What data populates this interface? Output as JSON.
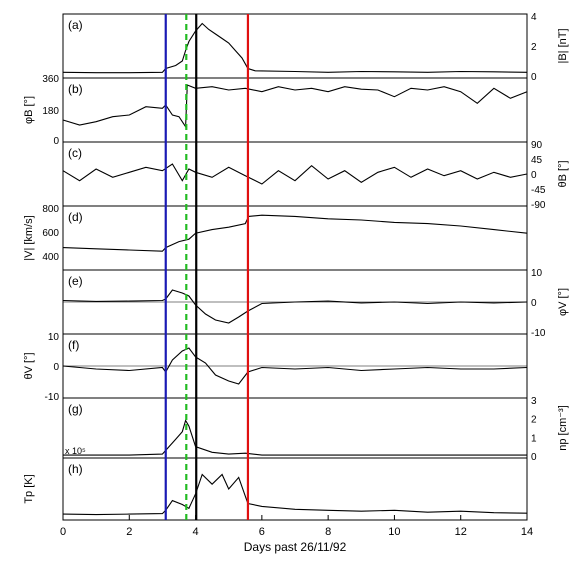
{
  "chart_data": {
    "type": "line",
    "xlabel": "Days past 26/11/92",
    "xlim": [
      0,
      14
    ],
    "x_ticks": [
      "0",
      "2",
      "4",
      "6",
      "8",
      "10",
      "12",
      "14"
    ],
    "markers": [
      {
        "x": 3.1,
        "color": "#1a1ab4",
        "style": "solid"
      },
      {
        "x": 3.72,
        "color": "#22bb22",
        "style": "dashed"
      },
      {
        "x": 4.02,
        "color": "#000000",
        "style": "solid"
      },
      {
        "x": 5.58,
        "color": "#e01010",
        "style": "solid"
      }
    ],
    "panels": [
      {
        "label": "(a)",
        "ylabel": "|B| [nT]",
        "ylabel_side": "right",
        "ylim": [
          0,
          4
        ],
        "ticks": [
          "0",
          "2",
          "4"
        ],
        "left_ticks": [
          "360"
        ],
        "zero_line": false,
        "series": [
          [
            0,
            0.25
          ],
          [
            1,
            0.22
          ],
          [
            2,
            0.22
          ],
          [
            3,
            0.25
          ],
          [
            3.1,
            0.5
          ],
          [
            3.4,
            0.7
          ],
          [
            3.6,
            1.0
          ],
          [
            3.7,
            1.7
          ],
          [
            3.8,
            2.3
          ],
          [
            4.0,
            3.0
          ],
          [
            4.2,
            3.5
          ],
          [
            4.4,
            3.1
          ],
          [
            4.6,
            2.8
          ],
          [
            4.8,
            2.5
          ],
          [
            5.0,
            2.2
          ],
          [
            5.2,
            1.7
          ],
          [
            5.4,
            1.2
          ],
          [
            5.58,
            0.5
          ],
          [
            5.8,
            0.35
          ],
          [
            7,
            0.3
          ],
          [
            8,
            0.25
          ],
          [
            9,
            0.3
          ],
          [
            10,
            0.28
          ],
          [
            11,
            0.25
          ],
          [
            12,
            0.3
          ],
          [
            13,
            0.28
          ],
          [
            14,
            0.25
          ]
        ]
      },
      {
        "label": "(b)",
        "ylabel": "φB [°]",
        "ylabel_side": "left",
        "ylim": [
          0,
          360
        ],
        "ticks": [
          "0",
          "180"
        ],
        "zero_line": false,
        "series": [
          [
            0,
            120
          ],
          [
            0.5,
            90
          ],
          [
            1,
            110
          ],
          [
            1.5,
            140
          ],
          [
            2,
            150
          ],
          [
            2.5,
            200
          ],
          [
            3,
            190
          ],
          [
            3.1,
            210
          ],
          [
            3.3,
            150
          ],
          [
            3.5,
            140
          ],
          [
            3.7,
            80
          ],
          [
            3.75,
            330
          ],
          [
            4,
            310
          ],
          [
            4.5,
            320
          ],
          [
            5,
            300
          ],
          [
            5.5,
            310
          ],
          [
            6,
            290
          ],
          [
            6.5,
            320
          ],
          [
            7,
            300
          ],
          [
            7.5,
            310
          ],
          [
            8,
            290
          ],
          [
            8.5,
            320
          ],
          [
            9,
            305
          ],
          [
            9.5,
            300
          ],
          [
            10,
            260
          ],
          [
            10.5,
            310
          ],
          [
            11,
            300
          ],
          [
            11.5,
            320
          ],
          [
            12,
            290
          ],
          [
            12.5,
            220
          ],
          [
            13,
            310
          ],
          [
            13.5,
            250
          ],
          [
            14,
            290
          ]
        ]
      },
      {
        "label": "(c)",
        "ylabel": "θB [°]",
        "ylabel_side": "right",
        "ylim": [
          -90,
          90
        ],
        "ticks": [
          "-90",
          "-45",
          "0",
          "45",
          "90"
        ],
        "zero_line": false,
        "series": [
          [
            0,
            10
          ],
          [
            0.5,
            -20
          ],
          [
            1,
            15
          ],
          [
            1.5,
            -10
          ],
          [
            2,
            5
          ],
          [
            2.5,
            20
          ],
          [
            3,
            10
          ],
          [
            3.3,
            30
          ],
          [
            3.6,
            -20
          ],
          [
            3.8,
            15
          ],
          [
            4,
            5
          ],
          [
            4.5,
            -10
          ],
          [
            5,
            20
          ],
          [
            5.5,
            -5
          ],
          [
            6,
            -30
          ],
          [
            6.5,
            10
          ],
          [
            7,
            -20
          ],
          [
            7.5,
            25
          ],
          [
            8,
            -15
          ],
          [
            8.5,
            10
          ],
          [
            9,
            -25
          ],
          [
            9.5,
            5
          ],
          [
            10,
            20
          ],
          [
            10.5,
            -10
          ],
          [
            11,
            15
          ],
          [
            11.5,
            -5
          ],
          [
            12,
            10
          ],
          [
            12.5,
            -15
          ],
          [
            13,
            5
          ],
          [
            13.5,
            -10
          ],
          [
            14,
            0
          ]
        ]
      },
      {
        "label": "(d)",
        "ylabel": "|V| [km/s]",
        "ylabel_side": "left",
        "ylim": [
          300,
          800
        ],
        "ticks": [
          "400",
          "600",
          "800"
        ],
        "zero_line": false,
        "series": [
          [
            0,
            470
          ],
          [
            1,
            460
          ],
          [
            2,
            450
          ],
          [
            3,
            440
          ],
          [
            3.1,
            470
          ],
          [
            3.5,
            520
          ],
          [
            3.8,
            540
          ],
          [
            4.0,
            590
          ],
          [
            4.5,
            620
          ],
          [
            5.0,
            640
          ],
          [
            5.5,
            670
          ],
          [
            5.6,
            730
          ],
          [
            6,
            740
          ],
          [
            7,
            730
          ],
          [
            8,
            710
          ],
          [
            9,
            700
          ],
          [
            10,
            680
          ],
          [
            11,
            670
          ],
          [
            12,
            650
          ],
          [
            13,
            620
          ],
          [
            14,
            590
          ]
        ]
      },
      {
        "label": "(e)",
        "ylabel": "φV [°]",
        "ylabel_side": "right",
        "ylim": [
          -10,
          10
        ],
        "ticks": [
          "-10",
          "0",
          "10"
        ],
        "zero_line": true,
        "series": [
          [
            0,
            0.5
          ],
          [
            1,
            0.2
          ],
          [
            2,
            0.3
          ],
          [
            3,
            0.5
          ],
          [
            3.1,
            1
          ],
          [
            3.3,
            4
          ],
          [
            3.6,
            3
          ],
          [
            3.8,
            2
          ],
          [
            4.0,
            -1
          ],
          [
            4.3,
            -4
          ],
          [
            4.6,
            -6
          ],
          [
            5.0,
            -7
          ],
          [
            5.3,
            -5
          ],
          [
            5.58,
            -3
          ],
          [
            6,
            -0.5
          ],
          [
            7,
            0
          ],
          [
            8,
            0.3
          ],
          [
            9,
            -0.3
          ],
          [
            10,
            0
          ],
          [
            11,
            -0.5
          ],
          [
            12,
            0
          ],
          [
            13,
            -0.3
          ],
          [
            14,
            0
          ]
        ]
      },
      {
        "label": "(f)",
        "ylabel": "θV [°]",
        "ylabel_side": "left",
        "ylim": [
          -10,
          10
        ],
        "ticks": [
          "-10",
          "0",
          "10"
        ],
        "zero_line": true,
        "series": [
          [
            0,
            0
          ],
          [
            1,
            -1
          ],
          [
            2,
            -1.5
          ],
          [
            3,
            -0.5
          ],
          [
            3.1,
            -2
          ],
          [
            3.3,
            2
          ],
          [
            3.6,
            5
          ],
          [
            3.8,
            6
          ],
          [
            4.0,
            3
          ],
          [
            4.3,
            1
          ],
          [
            4.6,
            -3
          ],
          [
            5.0,
            -5
          ],
          [
            5.3,
            -6
          ],
          [
            5.58,
            -2
          ],
          [
            6,
            -0.5
          ],
          [
            7,
            -1
          ],
          [
            8,
            -0.5
          ],
          [
            9,
            -1.5
          ],
          [
            10,
            -1
          ],
          [
            11,
            -0.5
          ],
          [
            12,
            -1
          ],
          [
            13,
            -1
          ],
          [
            14,
            -0.5
          ]
        ]
      },
      {
        "label": "(g)",
        "ylabel": "np [cm⁻³]",
        "ylabel_side": "right",
        "ylim": [
          0,
          3
        ],
        "ticks": [
          "0",
          "1",
          "2",
          "3"
        ],
        "zero_line": false,
        "series": [
          [
            0,
            0.05
          ],
          [
            1,
            0.05
          ],
          [
            2,
            0.05
          ],
          [
            3,
            0.1
          ],
          [
            3.1,
            0.3
          ],
          [
            3.4,
            0.9
          ],
          [
            3.6,
            1.3
          ],
          [
            3.7,
            1.9
          ],
          [
            3.8,
            1.6
          ],
          [
            4.0,
            0.5
          ],
          [
            4.5,
            0.2
          ],
          [
            5.0,
            0.1
          ],
          [
            5.5,
            0.15
          ],
          [
            6,
            0.05
          ],
          [
            8,
            0.05
          ],
          [
            10,
            0.05
          ],
          [
            12,
            0.05
          ],
          [
            14,
            0.05
          ]
        ]
      },
      {
        "label": "(h)",
        "ylabel": "Tp [K]",
        "ylabel_side": "left",
        "ylim": [
          0,
          6
        ],
        "ticks": [],
        "zero_line": false,
        "scale_note": "x 10⁵",
        "series": [
          [
            0,
            0.4
          ],
          [
            1,
            0.35
          ],
          [
            2,
            0.4
          ],
          [
            3,
            0.45
          ],
          [
            3.1,
            0.8
          ],
          [
            3.3,
            1.8
          ],
          [
            3.6,
            1.4
          ],
          [
            3.8,
            1.0
          ],
          [
            4.0,
            2.5
          ],
          [
            4.2,
            4.5
          ],
          [
            4.5,
            3.5
          ],
          [
            4.8,
            4.5
          ],
          [
            5.0,
            3.0
          ],
          [
            5.3,
            4.2
          ],
          [
            5.58,
            1.5
          ],
          [
            6,
            1.2
          ],
          [
            7,
            0.9
          ],
          [
            8,
            0.8
          ],
          [
            9,
            0.7
          ],
          [
            10,
            0.8
          ],
          [
            11,
            0.6
          ],
          [
            12,
            0.7
          ],
          [
            13,
            0.55
          ],
          [
            14,
            0.5
          ]
        ]
      }
    ]
  }
}
